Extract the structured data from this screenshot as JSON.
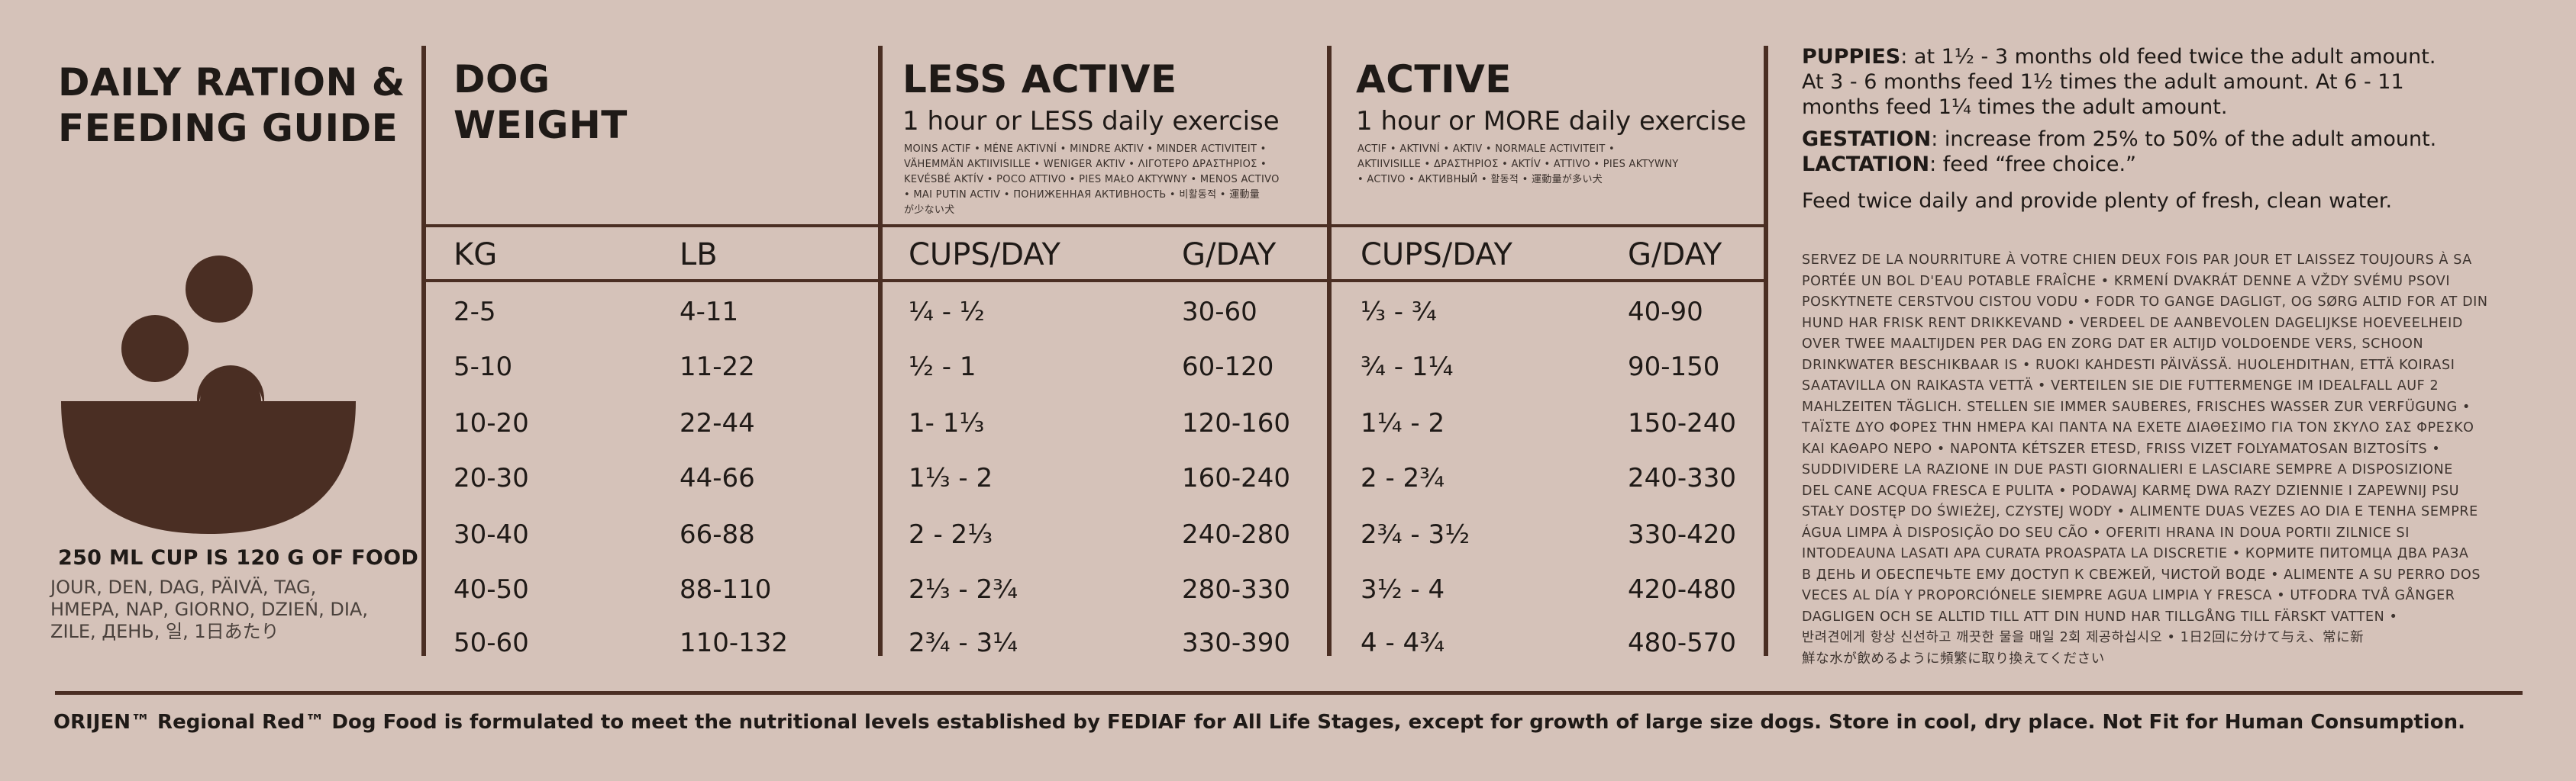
{
  "guide": {
    "title_line1": "DAILY RATION &",
    "title_line2": "FEEDING GUIDE",
    "cup_note": "250 ML CUP IS 120 G OF FOOD",
    "cup_langs": [
      "JOUR, DEN, DAG, PÄIVÄ, TAG,",
      "HMEPA, NAP, GIORNO, DZIEŃ, DIA,",
      "ZILE, ДЕНЬ, 일, 1日あたり"
    ]
  },
  "columns": {
    "weight": {
      "title_line1": "DOG",
      "title_line2": "WEIGHT",
      "kg_label": "KG",
      "lb_label": "LB"
    },
    "less_active": {
      "title": "LESS ACTIVE",
      "subtitle": "1 hour or LESS daily exercise",
      "translations": [
        "MOINS ACTIF • MÉNE AKTIVNÍ • MINDRE AKTIV • MINDER ACTIVITEIT •",
        "VÄHEMMÄN AKTIIVISILLE • WENIGER AKTIV • ΛΙΓΟΤΕΡΟ ΔΡΑΣΤΗΡΙΟΣ •",
        "KEVÉSBÉ AKTÍV • POCO ATTIVO • PIES MAŁO AKTYWNY • MENOS ACTIVO",
        "• MAI PUTIN ACTIV • ПОНИЖЕННАЯ АКТИВНОСТЬ • 비활동적 • 運動量",
        "が少ない犬"
      ],
      "cups_label": "CUPS/DAY",
      "g_label": "G/DAY"
    },
    "active": {
      "title": "ACTIVE",
      "subtitle": "1 hour or MORE daily exercise",
      "translations": [
        "ACTIF • AKTIVNÍ • AKTIV • NORMALE ACTIVITEIT •",
        "AKTIIVISILLE • ΔΡΑΣΤΗΡΙΟΣ • AKTÍV • ATTIVO • PIES AKTYWNY",
        "• ACTIVO • АКТИВНЫЙ • 활동적 • 運動量が多い犬"
      ],
      "cups_label": "CUPS/DAY",
      "g_label": "G/DAY"
    }
  },
  "rows": [
    {
      "kg": "2-5",
      "lb": "4-11",
      "less_cups": "¼ - ½",
      "less_g": "30-60",
      "active_cups": "⅓ - ¾",
      "active_g": "40-90"
    },
    {
      "kg": "5-10",
      "lb": "11-22",
      "less_cups": "½ - 1",
      "less_g": "60-120",
      "active_cups": "¾ - 1¼",
      "active_g": "90-150"
    },
    {
      "kg": "10-20",
      "lb": "22-44",
      "less_cups": "1- 1⅓",
      "less_g": "120-160",
      "active_cups": "1¼ - 2",
      "active_g": "150-240"
    },
    {
      "kg": "20-30",
      "lb": "44-66",
      "less_cups": "1⅓ - 2",
      "less_g": "160-240",
      "active_cups": "2 - 2¾",
      "active_g": "240-330"
    },
    {
      "kg": "30-40",
      "lb": "66-88",
      "less_cups": "2 - 2⅓",
      "less_g": "240-280",
      "active_cups": "2¾ - 3½",
      "active_g": "330-420"
    },
    {
      "kg": "40-50",
      "lb": "88-110",
      "less_cups": "2⅓ - 2¾",
      "less_g": "280-330",
      "active_cups": "3½ - 4",
      "active_g": "420-480"
    },
    {
      "kg": "50-60",
      "lb": "110-132",
      "less_cups": "2¾ - 3¼",
      "less_g": "330-390",
      "active_cups": "4 - 4¾",
      "active_g": "480-570"
    }
  ],
  "notes": {
    "puppies_label": "PUPPIES",
    "puppies_text_1": ": at 1½ - 3 months old feed twice the adult amount.",
    "puppies_text_2": "At  3 - 6 months feed 1½ times the adult amount. At 6 - 11",
    "puppies_text_3": "months feed 1¼ times the adult amount.",
    "gestation_label": "GESTATION",
    "gestation_text": ": increase from 25% to 50% of the adult amount.",
    "lactation_label": "LACTATION",
    "lactation_text": ": feed “free choice.”",
    "feed_text": "Feed twice daily and provide plenty of fresh, clean water.",
    "multilang": [
      "SERVEZ DE LA NOURRITURE À VOTRE CHIEN DEUX FOIS PAR JOUR ET LAISSEZ TOUJOURS À SA",
      "PORTÉE UN BOL D'EAU POTABLE FRAÎCHE • KRMENÍ DVAKRÁT DENNE A VŽDY SVÉMU PSOVI",
      "POSKYTNETE CERSTVOU CISTOU VODU • FODR TO GANGE DAGLIGT, OG SØRG ALTID FOR AT DIN",
      "HUND HAR FRISK RENT DRIKKEVAND • VERDEEL DE AANBEVOLEN DAGELIJKSE HOEVEELHEID",
      "OVER TWEE MAALTIJDEN PER DAG EN ZORG DAT ER ALTIJD VOLDOENDE VERS, SCHOON",
      "DRINKWATER BESCHIKBAAR IS • RUOKI KAHDESTI PÄIVÄSSÄ. HUOLEHDITHAN, ETTÄ KOIRASI",
      "SAATAVILLA ON RAIKASTA VETTÄ • VERTEILEN SIE DIE FUTTERMENGE IM IDEALFALL AUF 2",
      "MAHLZEITEN TÄGLICH. STELLEN SIE IMMER SAUBERES, FRISCHES WASSER ZUR VERFÜGUNG •",
      "ΤΑΪΣΤΕ ΔΥΟ ΦΟΡΕΣ ΤΗΝ ΗΜΕΡΑ ΚΑΙ ΠΑΝΤΑ ΝΑ ΕΧΕΤΕ ΔΙΑΘΕΣΙΜΟ ΓΙΑ ΤΟΝ ΣΚΥΛΟ ΣΑΣ ΦΡΕΣΚΟ",
      "ΚΑΙ ΚΑΘΑΡΟ ΝΕΡΟ • NAPONTA KÉTSZER ETESD, FRISS VIZET FOLYAMATOSAN BIZTOSÍTS •",
      "SUDDIVIDERE LA RAZIONE IN DUE PASTI GIORNALIERI E LASCIARE SEMPRE A DISPOSIZIONE",
      "DEL CANE ACQUA FRESCA E PULITA • PODAWAJ KARMĘ DWA RAZY DZIENNIE I ZAPEWNIJ PSU",
      "STAŁY DOSTĘP DO ŚWIEŻEJ, CZYSTEJ WODY • ALIMENTE DUAS VEZES AO DIA E TENHA SEMPRE",
      "ÁGUA LIMPA À DISPOSIÇÃO DO SEU CÃO • OFERITI HRANA IN DOUA PORTII ZILNICE SI",
      "INTODEAUNA LASATI APA CURATA PROASPATA LA DISCRETIE • КОРМИТЕ ПИТОМЦА ДВА РАЗА",
      "В ДЕНЬ И ОБЕСПЕЧЬТЕ ЕМУ ДОСТУП К СВЕЖЕЙ, ЧИСТОЙ ВОДЕ • ALIMENTE A SU PERRO DOS",
      "VECES AL DÍA Y PROPORCIÓNELE SIEMPRE AGUA LIMPIA Y FRESCA • UTFODRA TVÅ GÅNGER",
      "DAGLIGEN OCH SE ALLTID TILL ATT DIN HUND HAR TILLGÅNG TILL FÄRSKT VATTEN •",
      "반려견에게 항상 신선하고 깨끗한 물을 매일 2회 제공하십시오 • 1日2回に分けて与え、常に新",
      "鮮な水が飲めるように頻繁に取り換えてください"
    ]
  },
  "footer": {
    "text": "ORIJEN™ Regional Red™ Dog Food is formulated to meet the nutritional levels established by FEDIAF for All Life Stages, except for growth of large size dogs. Store in cool, dry place. Not Fit for Human Consumption."
  },
  "colors": {
    "background": "#d5c2b9",
    "rule": "#4a2e23",
    "bowl": "#4a2e23"
  },
  "icons": [
    "food-bowl-icon"
  ]
}
